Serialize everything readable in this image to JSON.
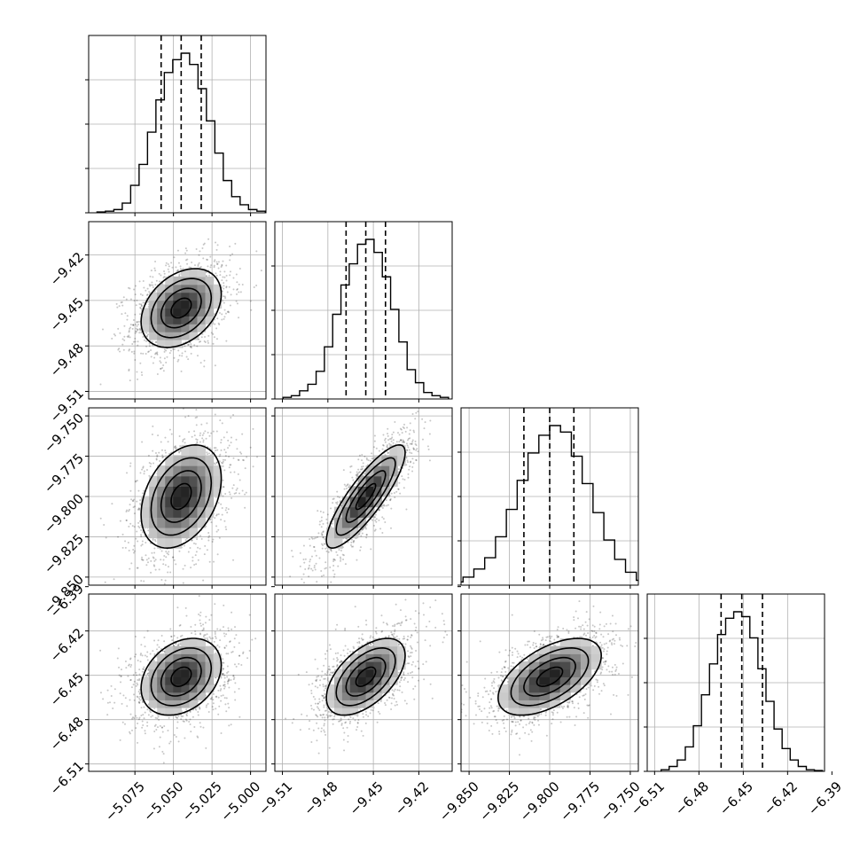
{
  "chart_data": {
    "type": "corner",
    "title": "",
    "grid": true,
    "parameters": [
      {
        "key": "p0",
        "label": "",
        "range": [
          -5.105,
          -4.99
        ],
        "ticks": [
          -5.075,
          -5.05,
          -5.025,
          -5.0
        ],
        "tick_labels": [
          "−5.075",
          "−5.050",
          "−5.025",
          "−5.000"
        ],
        "mean": -5.045,
        "std": 0.013,
        "quantiles": [
          -5.058,
          -5.045,
          -5.032
        ]
      },
      {
        "key": "p1",
        "label": "",
        "range": [
          -9.515,
          -9.398
        ],
        "ticks": [
          -9.51,
          -9.48,
          -9.45,
          -9.42
        ],
        "tick_labels": [
          "−9.51",
          "−9.48",
          "−9.45",
          "−9.42"
        ],
        "mean": -9.455,
        "std": 0.013,
        "quantiles": [
          -9.468,
          -9.455,
          -9.442
        ]
      },
      {
        "key": "p2",
        "label": "",
        "range": [
          -9.855,
          -9.745
        ],
        "ticks": [
          -9.85,
          -9.825,
          -9.8,
          -9.775,
          -9.75
        ],
        "tick_labels": [
          "−9.850",
          "−9.825",
          "−9.800",
          "−9.775",
          "−9.750"
        ],
        "mean": -9.8,
        "std": 0.016,
        "quantiles": [
          -9.816,
          -9.8,
          -9.785
        ]
      },
      {
        "key": "p3",
        "label": "",
        "range": [
          -6.515,
          -6.395
        ],
        "ticks": [
          -6.51,
          -6.48,
          -6.45,
          -6.42,
          -6.39
        ],
        "tick_labels": [
          "−6.51",
          "−6.48",
          "−6.45",
          "−6.42",
          "−6.39"
        ],
        "mean": -6.451,
        "std": 0.013,
        "quantiles": [
          -6.465,
          -6.451,
          -6.437
        ]
      }
    ],
    "histograms": {
      "p0": [
        0.005,
        0.01,
        0.02,
        0.06,
        0.17,
        0.3,
        0.5,
        0.7,
        0.87,
        0.95,
        0.99,
        0.92,
        0.77,
        0.57,
        0.37,
        0.2,
        0.1,
        0.05,
        0.02,
        0.01
      ],
      "p1": [
        0.01,
        0.02,
        0.05,
        0.09,
        0.17,
        0.32,
        0.52,
        0.7,
        0.83,
        0.95,
        0.98,
        0.9,
        0.75,
        0.55,
        0.35,
        0.18,
        0.1,
        0.04,
        0.02,
        0.01
      ],
      "p2": [
        0.01,
        0.02,
        0.05,
        0.1,
        0.17,
        0.3,
        0.47,
        0.65,
        0.82,
        0.93,
        0.99,
        0.95,
        0.8,
        0.63,
        0.45,
        0.28,
        0.16,
        0.08,
        0.03,
        0.01
      ],
      "p3": [
        0.01,
        0.03,
        0.07,
        0.15,
        0.28,
        0.47,
        0.66,
        0.84,
        0.94,
        0.98,
        0.95,
        0.82,
        0.63,
        0.43,
        0.26,
        0.14,
        0.07,
        0.03,
        0.01,
        0.005
      ]
    },
    "correlations": {
      "p1|p0": 0.35,
      "p2|p0": 0.35,
      "p2|p1": 0.85,
      "p3|p0": 0.3,
      "p3|p1": 0.55,
      "p3|p2": 0.55
    },
    "contour_levels_sigma": [
      0.5,
      1.0,
      1.5,
      2.0
    ]
  }
}
